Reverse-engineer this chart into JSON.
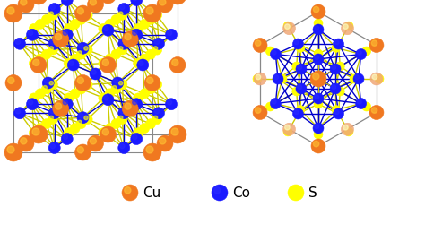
{
  "background_color": "#ffffff",
  "legend_items": [
    {
      "label": "Cu",
      "color": "#f07820"
    },
    {
      "label": "Co",
      "color": "#1a1aff"
    },
    {
      "label": "S",
      "color": "#ffff00"
    }
  ],
  "legend_fontsize": 11,
  "figsize": [
    4.74,
    2.6
  ],
  "dpi": 100,
  "cu_color": "#f07820",
  "co_color": "#1a1aff",
  "s_color": "#ffff00",
  "bond_blue": "#0000cc",
  "bond_yellow": "#cccc00",
  "bond_gray": "#888888",
  "bond_black": "#333333"
}
